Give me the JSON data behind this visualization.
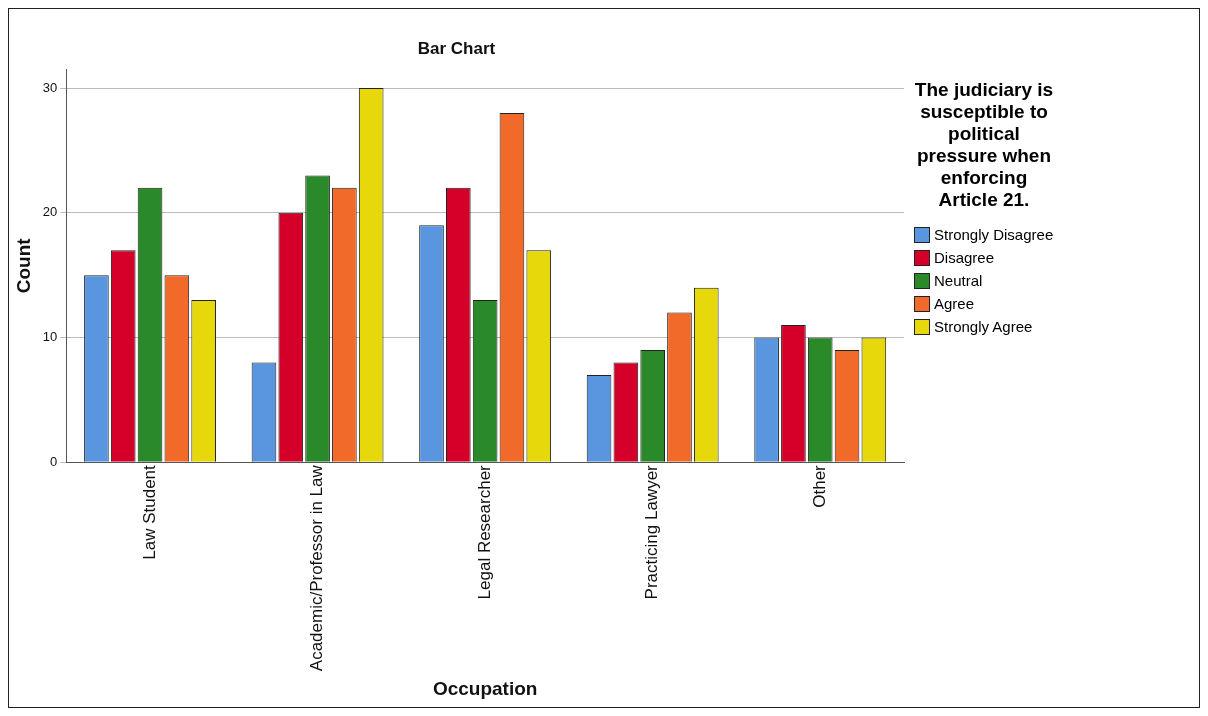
{
  "chart_data": {
    "type": "bar",
    "title": "Bar Chart",
    "xlabel": "Occupation",
    "ylabel": "Count",
    "legend_title": "The judiciary is susceptible to political pressure when enforcing Article 21.",
    "categories": [
      "Law Student",
      "Academic/Professor in Law",
      "Legal Researcher",
      "Practicing Lawyer",
      "Other"
    ],
    "series": [
      {
        "name": "Strongly Disagree",
        "color": "#5a96e0",
        "values": [
          15,
          8,
          19,
          7,
          10
        ]
      },
      {
        "name": "Disagree",
        "color": "#d4002a",
        "values": [
          17,
          20,
          22,
          8,
          11
        ]
      },
      {
        "name": "Neutral",
        "color": "#2a8a2a",
        "values": [
          22,
          23,
          13,
          9,
          10
        ]
      },
      {
        "name": "Agree",
        "color": "#f26a2a",
        "values": [
          15,
          22,
          28,
          12,
          9
        ]
      },
      {
        "name": "Strongly Agree",
        "color": "#e6d80a",
        "values": [
          13,
          30,
          17,
          14,
          10
        ]
      }
    ],
    "ylim": [
      0,
      31.5
    ],
    "yticks": [
      0,
      10,
      20,
      30
    ],
    "grid": "y",
    "legend": "right"
  }
}
